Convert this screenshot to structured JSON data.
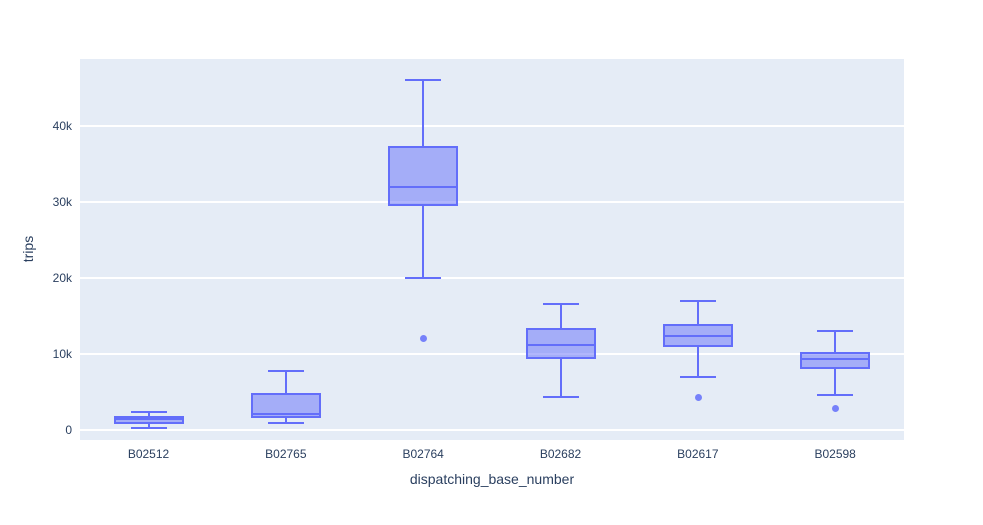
{
  "chart_data": {
    "type": "box",
    "title": "",
    "xlabel": "dispatching_base_number",
    "ylabel": "trips",
    "categories": [
      "B02512",
      "B02765",
      "B02764",
      "B02682",
      "B02617",
      "B02598"
    ],
    "boxes": [
      {
        "category": "B02512",
        "min": 300,
        "q1": 800,
        "median": 1400,
        "q3": 1900,
        "max": 2400,
        "outliers": []
      },
      {
        "category": "B02765",
        "min": 900,
        "q1": 1600,
        "median": 2100,
        "q3": 4900,
        "max": 7700,
        "outliers": []
      },
      {
        "category": "B02764",
        "min": 20000,
        "q1": 29400,
        "median": 32000,
        "q3": 37300,
        "max": 46000,
        "outliers": [
          12000
        ]
      },
      {
        "category": "B02682",
        "min": 4300,
        "q1": 9300,
        "median": 11200,
        "q3": 13400,
        "max": 16500,
        "outliers": []
      },
      {
        "category": "B02617",
        "min": 7000,
        "q1": 10900,
        "median": 12400,
        "q3": 13900,
        "max": 17000,
        "outliers": [
          4300
        ]
      },
      {
        "category": "B02598",
        "min": 4600,
        "q1": 8000,
        "median": 9300,
        "q3": 10200,
        "max": 13000,
        "outliers": [
          2800
        ]
      }
    ],
    "yticks": [
      {
        "label": "0",
        "value": 0
      },
      {
        "label": "10k",
        "value": 10000
      },
      {
        "label": "20k",
        "value": 20000
      },
      {
        "label": "30k",
        "value": 30000
      },
      {
        "label": "40k",
        "value": 40000
      }
    ],
    "ylim": [
      -1300,
      48750
    ],
    "legend": "none",
    "grid": "horizontal",
    "colors": {
      "box_line": "#636efa",
      "box_fill": "rgba(99,110,250,0.5)",
      "plot_bg": "#e5ecf6",
      "gridline": "#ffffff",
      "text": "#2a3f5f",
      "page_bg": "#ffffff"
    }
  }
}
